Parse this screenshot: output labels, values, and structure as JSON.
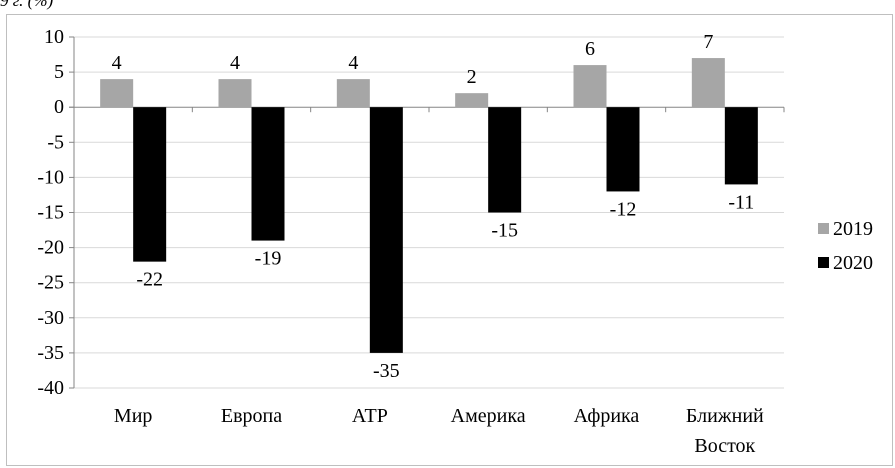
{
  "caption": "9 г. (%)",
  "colors": {
    "2019": "#a6a6a6",
    "2020": "#000000",
    "grid": "#d9d9d9",
    "axis": "#868686"
  },
  "chart_data": {
    "type": "bar",
    "categories": [
      [
        "Мир"
      ],
      [
        "Европа"
      ],
      [
        "АТР"
      ],
      [
        "Америка"
      ],
      [
        "Африка"
      ],
      [
        "Ближний",
        "Восток"
      ]
    ],
    "series": [
      {
        "name": "2019",
        "values": [
          4,
          4,
          4,
          2,
          6,
          7
        ]
      },
      {
        "name": "2020",
        "values": [
          -22,
          -19,
          -35,
          -15,
          -12,
          -11
        ]
      }
    ],
    "ylim": [
      -40,
      10
    ],
    "yticks": [
      10,
      5,
      0,
      -5,
      -10,
      -15,
      -20,
      -25,
      -30,
      -35,
      -40
    ],
    "grid": true,
    "legend_position": "right",
    "data_labels": true
  }
}
